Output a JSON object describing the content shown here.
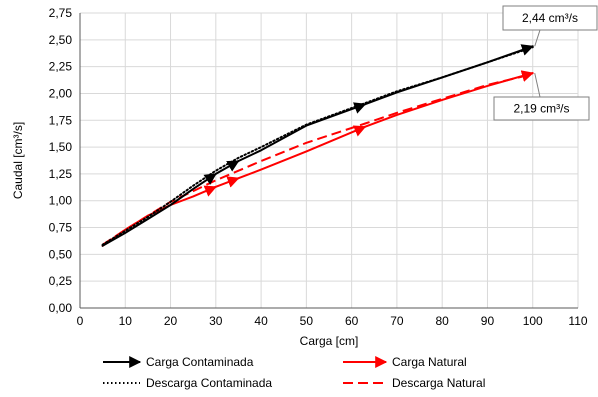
{
  "chart_data": {
    "type": "line",
    "xlabel": "Carga [cm]",
    "ylabel": "Caudal [cm³/s]",
    "xlim": [
      0,
      110
    ],
    "ylim": [
      0,
      2.75
    ],
    "x_ticks": [
      0,
      10,
      20,
      30,
      40,
      50,
      60,
      70,
      80,
      90,
      100,
      110
    ],
    "y_ticks": [
      0.0,
      0.25,
      0.5,
      0.75,
      1.0,
      1.25,
      1.5,
      1.75,
      2.0,
      2.25,
      2.5,
      2.75
    ],
    "x_tick_labels": [
      "0",
      "10",
      "20",
      "30",
      "40",
      "50",
      "60",
      "70",
      "80",
      "90",
      "100",
      "110"
    ],
    "y_tick_labels": [
      "0,00",
      "0,25",
      "0,50",
      "0,75",
      "1,00",
      "1,25",
      "1,50",
      "1,75",
      "2,00",
      "2,25",
      "2,50",
      "2,75"
    ],
    "grid": true,
    "legend_position": "bottom",
    "series": [
      {
        "name": "Carga Contaminada",
        "color": "#000000",
        "style": "solid-arrow",
        "x": [
          5,
          10,
          15,
          20,
          25,
          30,
          35,
          40,
          50,
          63,
          70,
          80,
          90,
          100
        ],
        "y": [
          0.58,
          0.7,
          0.83,
          0.96,
          1.11,
          1.25,
          1.37,
          1.47,
          1.7,
          1.9,
          2.01,
          2.15,
          2.29,
          2.44
        ]
      },
      {
        "name": "Descarga Contaminada",
        "color": "#000000",
        "style": "dotted",
        "x": [
          5,
          10,
          15,
          20,
          25,
          30,
          35,
          40,
          50,
          63,
          70,
          80,
          90,
          100
        ],
        "y": [
          0.59,
          0.72,
          0.85,
          0.99,
          1.14,
          1.28,
          1.4,
          1.5,
          1.71,
          1.91,
          2.02,
          2.15,
          2.29,
          2.43
        ]
      },
      {
        "name": "Carga Natural",
        "color": "#ff0000",
        "style": "solid-arrow",
        "x": [
          5,
          10,
          15,
          20,
          25,
          30,
          35,
          40,
          50,
          63,
          70,
          80,
          90,
          100
        ],
        "y": [
          0.58,
          0.73,
          0.86,
          0.96,
          1.04,
          1.13,
          1.21,
          1.29,
          1.46,
          1.69,
          1.8,
          1.94,
          2.07,
          2.19
        ]
      },
      {
        "name": "Descarga Natural",
        "color": "#ff0000",
        "style": "dashed",
        "x": [
          5,
          10,
          15,
          20,
          25,
          30,
          35,
          40,
          50,
          63,
          70,
          80,
          90,
          100
        ],
        "y": [
          0.59,
          0.73,
          0.86,
          0.99,
          1.09,
          1.19,
          1.28,
          1.37,
          1.54,
          1.72,
          1.82,
          1.95,
          2.08,
          2.18
        ]
      }
    ],
    "annotations": [
      {
        "text": "2,44 cm³/s",
        "x": 100,
        "y": 2.44,
        "placement": "above-right"
      },
      {
        "text": "2,19 cm³/s",
        "x": 100,
        "y": 2.19,
        "placement": "below-right"
      }
    ]
  }
}
